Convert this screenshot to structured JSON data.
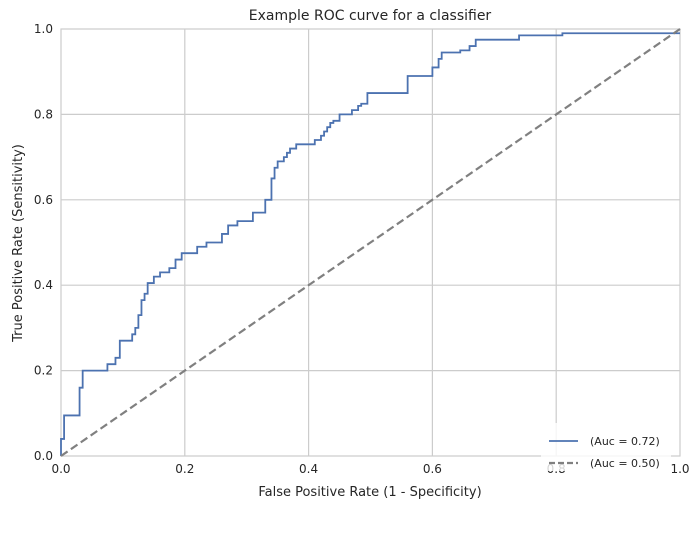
{
  "chart_data": {
    "type": "line",
    "title": "Example ROC curve for a classifier",
    "xlabel": "False Positive Rate (1 - Specificity)",
    "ylabel": "True Positive Rate (Sensitivity)",
    "xlim": [
      0,
      1
    ],
    "ylim": [
      0,
      1
    ],
    "grid": true,
    "legend_position": "lower-right",
    "xticks": [
      0.0,
      0.2,
      0.4,
      0.6,
      0.8,
      1.0
    ],
    "xtick_labels": [
      "0.0",
      "0.2",
      "0.4",
      "0.6",
      "0.8",
      "1.0"
    ],
    "yticks": [
      0.0,
      0.2,
      0.4,
      0.6,
      0.8,
      1.0
    ],
    "ytick_labels": [
      "0.0",
      "0.2",
      "0.4",
      "0.6",
      "0.8",
      "1.0"
    ],
    "series": [
      {
        "name": "(Auc = 0.72)",
        "color": "#4C72B0",
        "style": "solid",
        "x": [
          0.0,
          0.0,
          0.005,
          0.005,
          0.03,
          0.03,
          0.035,
          0.035,
          0.075,
          0.075,
          0.088,
          0.088,
          0.095,
          0.095,
          0.115,
          0.115,
          0.12,
          0.12,
          0.125,
          0.125,
          0.13,
          0.13,
          0.135,
          0.135,
          0.14,
          0.14,
          0.15,
          0.15,
          0.16,
          0.16,
          0.175,
          0.175,
          0.185,
          0.185,
          0.195,
          0.195,
          0.22,
          0.22,
          0.235,
          0.235,
          0.26,
          0.26,
          0.27,
          0.27,
          0.285,
          0.285,
          0.31,
          0.31,
          0.33,
          0.33,
          0.34,
          0.34,
          0.345,
          0.345,
          0.35,
          0.35,
          0.36,
          0.36,
          0.365,
          0.365,
          0.37,
          0.37,
          0.38,
          0.38,
          0.41,
          0.41,
          0.42,
          0.42,
          0.425,
          0.425,
          0.43,
          0.43,
          0.435,
          0.435,
          0.44,
          0.44,
          0.45,
          0.45,
          0.47,
          0.47,
          0.48,
          0.48,
          0.485,
          0.485,
          0.495,
          0.495,
          0.56,
          0.56,
          0.6,
          0.6,
          0.61,
          0.61,
          0.615,
          0.615,
          0.645,
          0.645,
          0.66,
          0.66,
          0.67,
          0.67,
          0.74,
          0.74,
          0.81,
          0.81,
          1.0
        ],
        "y": [
          0.0,
          0.04,
          0.04,
          0.095,
          0.095,
          0.16,
          0.16,
          0.2,
          0.2,
          0.215,
          0.215,
          0.23,
          0.23,
          0.27,
          0.27,
          0.285,
          0.285,
          0.3,
          0.3,
          0.33,
          0.33,
          0.365,
          0.365,
          0.38,
          0.38,
          0.405,
          0.405,
          0.42,
          0.42,
          0.43,
          0.43,
          0.44,
          0.44,
          0.46,
          0.46,
          0.475,
          0.475,
          0.49,
          0.49,
          0.5,
          0.5,
          0.52,
          0.52,
          0.54,
          0.54,
          0.55,
          0.55,
          0.57,
          0.57,
          0.6,
          0.6,
          0.65,
          0.65,
          0.675,
          0.675,
          0.69,
          0.69,
          0.7,
          0.7,
          0.71,
          0.71,
          0.72,
          0.72,
          0.73,
          0.73,
          0.74,
          0.74,
          0.75,
          0.75,
          0.76,
          0.76,
          0.77,
          0.77,
          0.78,
          0.78,
          0.785,
          0.785,
          0.8,
          0.8,
          0.81,
          0.81,
          0.82,
          0.82,
          0.825,
          0.825,
          0.85,
          0.85,
          0.89,
          0.89,
          0.91,
          0.91,
          0.93,
          0.93,
          0.945,
          0.945,
          0.95,
          0.95,
          0.96,
          0.96,
          0.975,
          0.975,
          0.985,
          0.985,
          0.99,
          0.99
        ]
      },
      {
        "name": "(Auc = 0.50)",
        "color": "#808080",
        "style": "dashed",
        "x": [
          0.0,
          1.0
        ],
        "y": [
          0.0,
          1.0
        ]
      }
    ]
  }
}
